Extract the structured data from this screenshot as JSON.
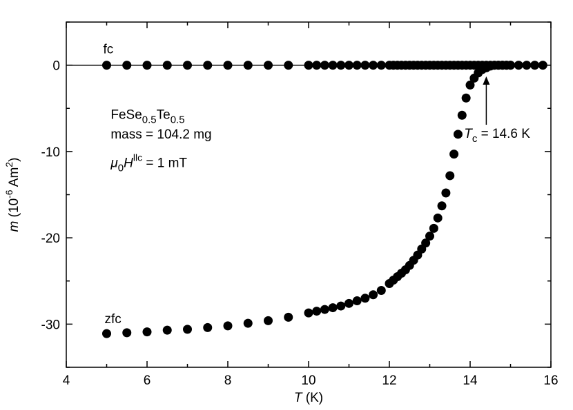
{
  "chart_data": {
    "type": "scatter",
    "x_axis": {
      "label_italic": "T",
      "label_rest": " (K)",
      "range": [
        4,
        16
      ],
      "ticks": [
        4,
        6,
        8,
        10,
        12,
        14,
        16
      ],
      "tick_labels": [
        "4",
        "6",
        "8",
        "10",
        "12",
        "14",
        "16"
      ],
      "minor_step": 1
    },
    "y_axis": {
      "label_italic": "m",
      "label_rest": " (10",
      "label_sup1": "-6",
      "label_mid": " Am",
      "label_sup2": "2",
      "label_end": ")",
      "range": [
        -35,
        5
      ],
      "ticks": [
        -30,
        -20,
        -10,
        0
      ],
      "tick_labels": [
        "-30",
        "-20",
        "-10",
        "0"
      ],
      "minor_step": 5
    },
    "zero_line": 0,
    "series": [
      {
        "name": "fc",
        "points": [
          [
            5.0,
            0.0
          ],
          [
            5.5,
            0.0
          ],
          [
            6.0,
            0.0
          ],
          [
            6.5,
            0.0
          ],
          [
            7.0,
            0.0
          ],
          [
            7.5,
            0.0
          ],
          [
            8.0,
            0.0
          ],
          [
            8.5,
            0.0
          ],
          [
            9.0,
            0.0
          ],
          [
            9.5,
            0.0
          ],
          [
            10.0,
            0.0
          ],
          [
            10.2,
            0.0
          ],
          [
            10.4,
            0.0
          ],
          [
            10.6,
            0.0
          ],
          [
            10.8,
            0.0
          ],
          [
            11.0,
            0.0
          ],
          [
            11.2,
            0.0
          ],
          [
            11.4,
            0.0
          ],
          [
            11.6,
            0.0
          ],
          [
            11.8,
            0.0
          ],
          [
            12.0,
            0.0
          ],
          [
            12.1,
            0.0
          ],
          [
            12.2,
            0.0
          ],
          [
            12.3,
            0.0
          ],
          [
            12.4,
            0.0
          ],
          [
            12.5,
            0.0
          ],
          [
            12.6,
            0.0
          ],
          [
            12.7,
            0.0
          ],
          [
            12.8,
            0.0
          ],
          [
            12.9,
            0.0
          ],
          [
            13.0,
            0.0
          ],
          [
            13.1,
            0.0
          ],
          [
            13.2,
            0.0
          ],
          [
            13.3,
            0.0
          ],
          [
            13.4,
            0.0
          ],
          [
            13.5,
            0.0
          ],
          [
            13.6,
            0.0
          ],
          [
            13.7,
            0.0
          ],
          [
            13.8,
            0.0
          ],
          [
            13.9,
            0.0
          ],
          [
            14.0,
            0.0
          ],
          [
            14.1,
            0.0
          ],
          [
            14.2,
            0.0
          ],
          [
            14.3,
            0.0
          ],
          [
            14.4,
            0.0
          ],
          [
            14.5,
            0.0
          ],
          [
            14.6,
            0.0
          ],
          [
            14.7,
            0.0
          ],
          [
            14.8,
            0.0
          ],
          [
            14.9,
            0.0
          ],
          [
            15.0,
            0.0
          ],
          [
            15.2,
            0.0
          ],
          [
            15.4,
            0.0
          ],
          [
            15.6,
            0.0
          ],
          [
            15.8,
            0.0
          ]
        ]
      },
      {
        "name": "zfc",
        "points": [
          [
            5.0,
            -31.1
          ],
          [
            5.5,
            -31.0
          ],
          [
            6.0,
            -30.9
          ],
          [
            6.5,
            -30.7
          ],
          [
            7.0,
            -30.6
          ],
          [
            7.5,
            -30.4
          ],
          [
            8.0,
            -30.2
          ],
          [
            8.5,
            -29.9
          ],
          [
            9.0,
            -29.6
          ],
          [
            9.5,
            -29.2
          ],
          [
            10.0,
            -28.7
          ],
          [
            10.2,
            -28.5
          ],
          [
            10.4,
            -28.3
          ],
          [
            10.6,
            -28.1
          ],
          [
            10.8,
            -27.9
          ],
          [
            11.0,
            -27.6
          ],
          [
            11.2,
            -27.3
          ],
          [
            11.4,
            -27.0
          ],
          [
            11.6,
            -26.6
          ],
          [
            11.8,
            -26.1
          ],
          [
            12.0,
            -25.3
          ],
          [
            12.1,
            -24.9
          ],
          [
            12.2,
            -24.5
          ],
          [
            12.3,
            -24.1
          ],
          [
            12.4,
            -23.7
          ],
          [
            12.5,
            -23.2
          ],
          [
            12.6,
            -22.6
          ],
          [
            12.7,
            -22.0
          ],
          [
            12.8,
            -21.3
          ],
          [
            12.9,
            -20.6
          ],
          [
            13.0,
            -19.8
          ],
          [
            13.1,
            -18.9
          ],
          [
            13.2,
            -17.7
          ],
          [
            13.3,
            -16.3
          ],
          [
            13.4,
            -14.8
          ],
          [
            13.5,
            -12.8
          ],
          [
            13.6,
            -10.3
          ],
          [
            13.7,
            -8.0
          ],
          [
            13.8,
            -5.8
          ],
          [
            13.9,
            -3.8
          ],
          [
            14.0,
            -2.3
          ],
          [
            14.1,
            -1.5
          ],
          [
            14.2,
            -0.9
          ],
          [
            14.3,
            -0.5
          ],
          [
            14.4,
            -0.3
          ],
          [
            14.5,
            -0.1
          ],
          [
            14.6,
            0.0
          ],
          [
            14.7,
            0.0
          ],
          [
            14.8,
            0.0
          ],
          [
            14.9,
            0.0
          ],
          [
            15.0,
            0.0
          ]
        ]
      }
    ],
    "labels": {
      "fc": "fc",
      "zfc": "zfc"
    },
    "annotation": {
      "compound": {
        "parts": [
          "FeSe",
          "0.5",
          "Te",
          "0.5"
        ]
      },
      "mass": "mass =  104.2 mg",
      "field": {
        "mu": "μ",
        "mu_sub": "0",
        "H": "H",
        "sup": "llc",
        "rest": " = 1 mT"
      },
      "tc": {
        "T": "T",
        "sub": "c",
        "rest": " = 14.6 K",
        "arrow_x": 14.4
      }
    }
  }
}
